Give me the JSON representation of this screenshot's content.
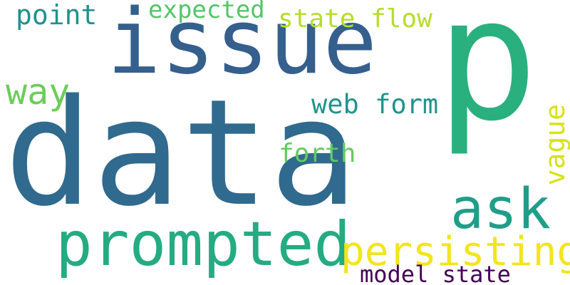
{
  "words": {
    "data": {
      "text": "data",
      "color": "#306a8e"
    },
    "issue": {
      "text": "issue",
      "color": "#355f8d"
    },
    "p": {
      "text": "p",
      "color": "#2ab07f"
    },
    "prompted": {
      "text": "prompted",
      "color": "#25ab82"
    },
    "ask": {
      "text": "ask",
      "color": "#1f9e89"
    },
    "persisting": {
      "text": "persisting",
      "color": "#f2e51d"
    },
    "way": {
      "text": "way",
      "color": "#6ccd5a"
    },
    "point": {
      "text": "point",
      "color": "#21918c"
    },
    "expected": {
      "text": "expected",
      "color": "#54c568"
    },
    "state_flow": {
      "text": "state flow",
      "color": "#b5de2b"
    },
    "web_form": {
      "text": "web form",
      "color": "#1f948c"
    },
    "forth": {
      "text": "forth",
      "color": "#63cb5f"
    },
    "vague": {
      "text": "vague",
      "color": "#d8e219"
    },
    "model_state": {
      "text": "model state",
      "color": "#440154"
    }
  }
}
